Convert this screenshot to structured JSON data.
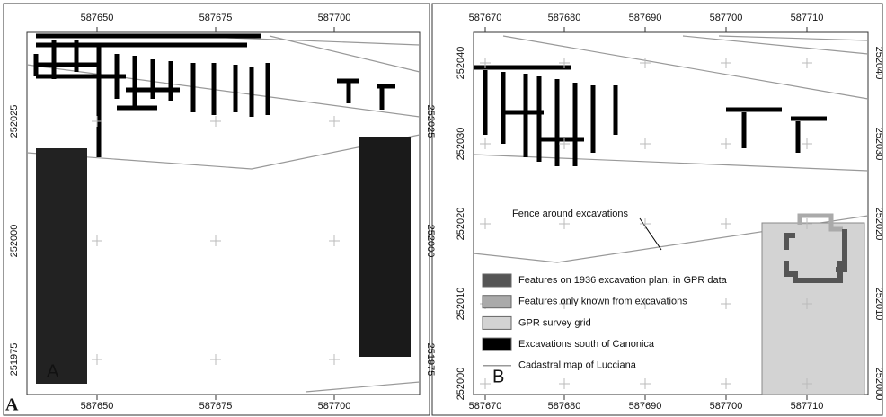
{
  "figure_label": "A",
  "panels": [
    {
      "label": "A",
      "x_ticks": [
        587650,
        587675,
        587700
      ],
      "y_ticks": [
        252025,
        252000,
        251975
      ]
    },
    {
      "label": "B",
      "x_ticks": [
        587670,
        587680,
        587690,
        587700,
        587710
      ],
      "y_ticks": [
        252040,
        252030,
        252020,
        252010,
        252000
      ],
      "annotation": "Fence around excavations",
      "legend": [
        "Features on 1936 excavation plan, in GPR data",
        "Features only known from excavations",
        "GPR survey grid",
        "Excavations south of Canonica",
        "Cadastral map of Lucciana"
      ]
    }
  ]
}
